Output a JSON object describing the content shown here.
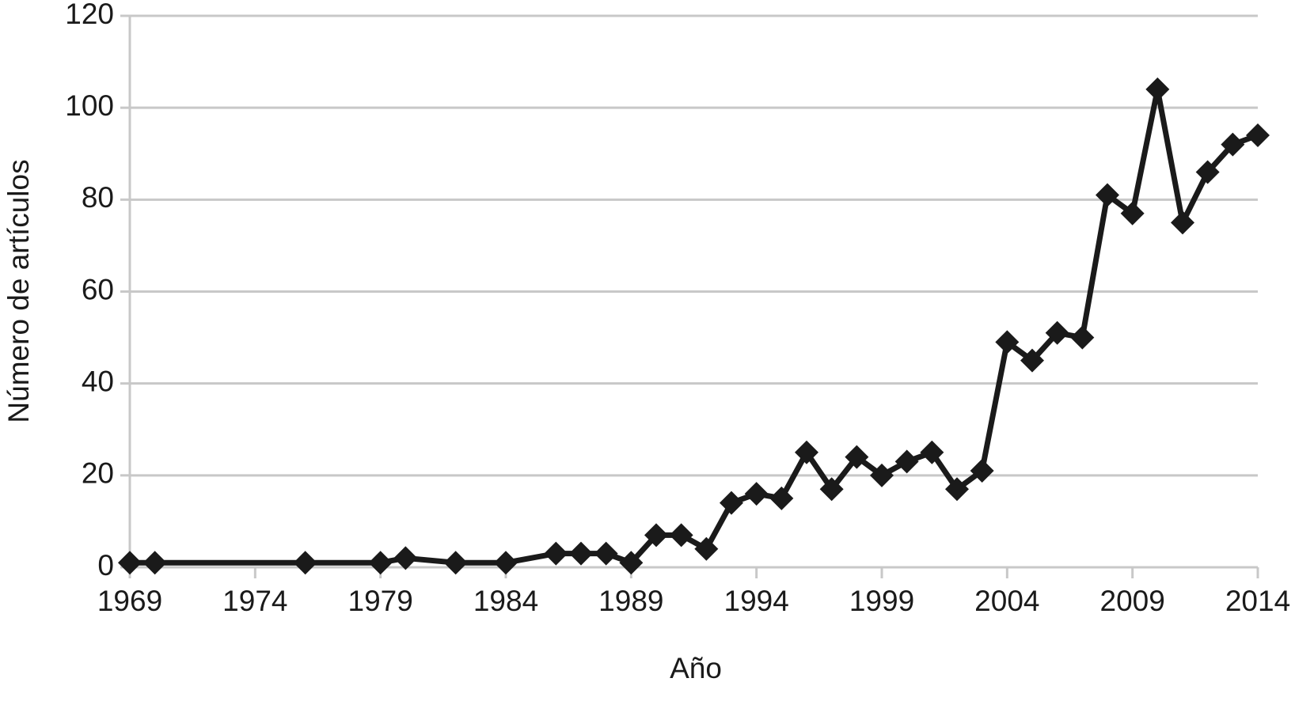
{
  "chart_data": {
    "type": "line",
    "x_label": "Año",
    "y_label": "Número de artículos",
    "x": [
      1969,
      1970,
      1976,
      1979,
      1980,
      1982,
      1984,
      1986,
      1987,
      1988,
      1989,
      1990,
      1991,
      1992,
      1993,
      1994,
      1995,
      1996,
      1997,
      1998,
      1999,
      2000,
      2001,
      2002,
      2003,
      2004,
      2005,
      2006,
      2007,
      2008,
      2009,
      2010,
      2011,
      2012,
      2013,
      2014
    ],
    "values": [
      1,
      1,
      1,
      1,
      2,
      1,
      1,
      3,
      3,
      3,
      1,
      7,
      7,
      4,
      14,
      16,
      15,
      25,
      17,
      24,
      20,
      23,
      25,
      17,
      21,
      49,
      45,
      51,
      50,
      81,
      77,
      104,
      75,
      86,
      92,
      94
    ],
    "color": "#1a1a1a",
    "xlim": [
      1969,
      2014
    ],
    "xticks": [
      1969,
      1974,
      1979,
      1984,
      1989,
      1994,
      1999,
      2004,
      2009,
      2014
    ],
    "ylim": [
      0,
      120
    ],
    "yticks": [
      0,
      20,
      40,
      60,
      80,
      100,
      120
    ],
    "grid": true
  }
}
